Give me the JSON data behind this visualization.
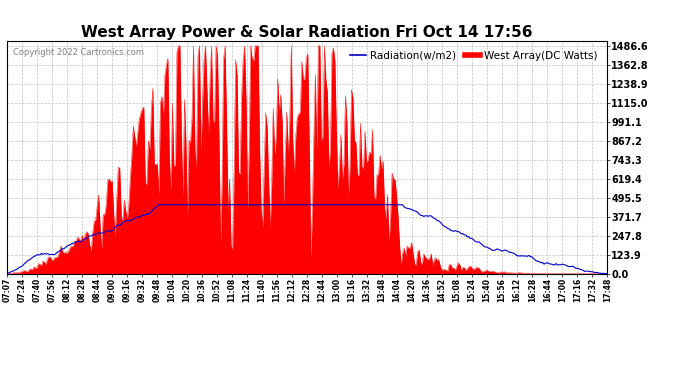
{
  "title": "West Array Power & Solar Radiation Fri Oct 14 17:56",
  "copyright": "Copyright 2022 Cartronics.com",
  "legend_radiation": "Radiation(w/m2)",
  "legend_west": "West Array(DC Watts)",
  "ylabel_right_ticks": [
    0.0,
    123.9,
    247.8,
    371.7,
    495.5,
    619.4,
    743.3,
    867.2,
    991.1,
    1115.0,
    1238.9,
    1362.8,
    1486.6
  ],
  "ymax": 1486.6,
  "ymin": 0.0,
  "bg_color": "#ffffff",
  "plot_bg_color": "#ffffff",
  "grid_color": "#c0c0c0",
  "red_color": "#ff0000",
  "blue_color": "#0000cc",
  "title_fontsize": 11,
  "xtick_labels": [
    "07:07",
    "07:24",
    "07:40",
    "07:56",
    "08:12",
    "08:28",
    "08:44",
    "09:00",
    "09:16",
    "09:32",
    "09:48",
    "10:04",
    "10:20",
    "10:36",
    "10:52",
    "11:08",
    "11:24",
    "11:40",
    "11:56",
    "12:12",
    "12:28",
    "12:44",
    "13:00",
    "13:16",
    "13:32",
    "13:48",
    "14:04",
    "14:20",
    "14:36",
    "14:52",
    "15:08",
    "15:24",
    "15:40",
    "15:56",
    "16:12",
    "16:28",
    "16:44",
    "17:00",
    "17:16",
    "17:32",
    "17:48"
  ]
}
